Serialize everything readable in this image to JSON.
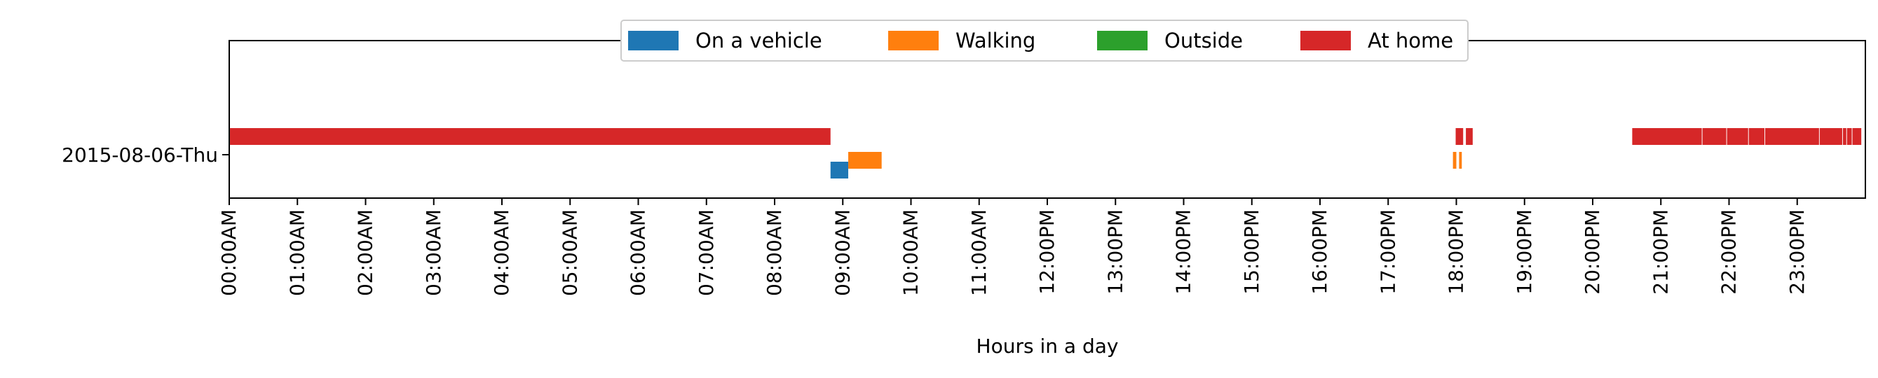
{
  "chart_data": {
    "type": "bar",
    "xlabel": "Hours in a day",
    "ylabel": "",
    "xlim": [
      0,
      24
    ],
    "x_ticks": [
      {
        "value": 0,
        "label": "00:00AM"
      },
      {
        "value": 1,
        "label": "01:00AM"
      },
      {
        "value": 2,
        "label": "02:00AM"
      },
      {
        "value": 3,
        "label": "03:00AM"
      },
      {
        "value": 4,
        "label": "04:00AM"
      },
      {
        "value": 5,
        "label": "05:00AM"
      },
      {
        "value": 6,
        "label": "06:00AM"
      },
      {
        "value": 7,
        "label": "07:00AM"
      },
      {
        "value": 8,
        "label": "08:00AM"
      },
      {
        "value": 9,
        "label": "09:00AM"
      },
      {
        "value": 10,
        "label": "10:00AM"
      },
      {
        "value": 11,
        "label": "11:00AM"
      },
      {
        "value": 12,
        "label": "12:00PM"
      },
      {
        "value": 13,
        "label": "13:00PM"
      },
      {
        "value": 14,
        "label": "14:00PM"
      },
      {
        "value": 15,
        "label": "15:00PM"
      },
      {
        "value": 16,
        "label": "16:00PM"
      },
      {
        "value": 17,
        "label": "17:00PM"
      },
      {
        "value": 18,
        "label": "18:00PM"
      },
      {
        "value": 19,
        "label": "19:00PM"
      },
      {
        "value": 20,
        "label": "20:00PM"
      },
      {
        "value": 21,
        "label": "21:00PM"
      },
      {
        "value": 22,
        "label": "22:00PM"
      },
      {
        "value": 23,
        "label": "23:00PM"
      }
    ],
    "categories": [
      "2015-08-06-Thu"
    ],
    "legend_position": "top-center",
    "grid": false,
    "series": [
      {
        "name": "On a vehicle",
        "color": "#1f77b4",
        "lane": 0,
        "intervals": [
          [
            8.82,
            9.08
          ]
        ]
      },
      {
        "name": "Walking",
        "color": "#ff7f0e",
        "lane": 1,
        "intervals": [
          [
            9.08,
            9.57
          ],
          [
            17.95,
            18.0
          ],
          [
            18.04,
            18.08
          ]
        ]
      },
      {
        "name": "Outside",
        "color": "#2ca02c",
        "lane": 2,
        "intervals": []
      },
      {
        "name": "At home",
        "color": "#d62728",
        "lane": 3,
        "intervals": [
          [
            0.0,
            8.82
          ],
          [
            17.99,
            18.1
          ],
          [
            18.14,
            18.24
          ],
          [
            20.58,
            21.6
          ],
          [
            21.61,
            21.96
          ],
          [
            21.97,
            22.28
          ],
          [
            22.29,
            22.52
          ],
          [
            22.53,
            23.32
          ],
          [
            23.33,
            23.66
          ],
          [
            23.67,
            23.72
          ],
          [
            23.73,
            23.8
          ],
          [
            23.81,
            23.94
          ]
        ]
      }
    ]
  }
}
